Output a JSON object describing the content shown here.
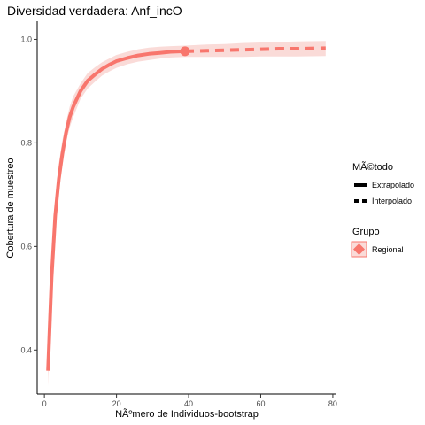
{
  "chart_data": {
    "type": "line",
    "title": "Diversidad verdadera: Anf_incO",
    "xlabel": "NÃºmero de Individuos-bootstrap",
    "ylabel": "Cobertura de muestreo",
    "xlim": [
      -2,
      81
    ],
    "ylim": [
      0.315,
      1.035
    ],
    "x_ticks": [
      0,
      20,
      40,
      60,
      80
    ],
    "y_ticks": [
      0.4,
      0.6,
      0.8,
      1.0
    ],
    "x_tick_labels": [
      "0",
      "20",
      "40",
      "60",
      "80"
    ],
    "y_tick_labels": [
      "0.4",
      "0.6",
      "0.8",
      "1.0"
    ],
    "series": [
      {
        "name": "Regional",
        "color": "#F8766D",
        "ribbon_color": "#FADBD8",
        "observed_point": {
          "x": 39,
          "y": 0.977
        },
        "interpolated": {
          "x": [
            1,
            2,
            3,
            4,
            5,
            6,
            7,
            8,
            10,
            12,
            14,
            16,
            18,
            20,
            23,
            26,
            29,
            32,
            35,
            39
          ],
          "y": [
            0.36,
            0.54,
            0.66,
            0.73,
            0.78,
            0.82,
            0.85,
            0.87,
            0.9,
            0.92,
            0.932,
            0.943,
            0.951,
            0.958,
            0.964,
            0.969,
            0.972,
            0.974,
            0.976,
            0.977
          ],
          "lower": [
            0.33,
            0.51,
            0.63,
            0.7,
            0.755,
            0.8,
            0.83,
            0.85,
            0.885,
            0.905,
            0.918,
            0.93,
            0.938,
            0.945,
            0.952,
            0.957,
            0.96,
            0.963,
            0.965,
            0.966
          ],
          "upper": [
            0.4,
            0.57,
            0.69,
            0.76,
            0.805,
            0.84,
            0.87,
            0.89,
            0.915,
            0.935,
            0.946,
            0.956,
            0.963,
            0.97,
            0.976,
            0.981,
            0.984,
            0.986,
            0.987,
            0.988
          ]
        },
        "extrapolated": {
          "x": [
            39,
            45,
            50,
            55,
            60,
            65,
            70,
            78
          ],
          "y": [
            0.977,
            0.978,
            0.979,
            0.98,
            0.981,
            0.982,
            0.982,
            0.983
          ],
          "lower": [
            0.966,
            0.966,
            0.966,
            0.966,
            0.967,
            0.967,
            0.967,
            0.968
          ],
          "upper": [
            0.988,
            0.99,
            0.991,
            0.993,
            0.994,
            0.995,
            0.996,
            0.997
          ]
        }
      }
    ],
    "legend": {
      "placement": "right",
      "method_title": "MÃ©todo",
      "method_items": [
        "Extrapolado",
        "Interpolado"
      ],
      "group_title": "Grupo",
      "group_items": [
        "Regional"
      ]
    },
    "grid": false
  }
}
